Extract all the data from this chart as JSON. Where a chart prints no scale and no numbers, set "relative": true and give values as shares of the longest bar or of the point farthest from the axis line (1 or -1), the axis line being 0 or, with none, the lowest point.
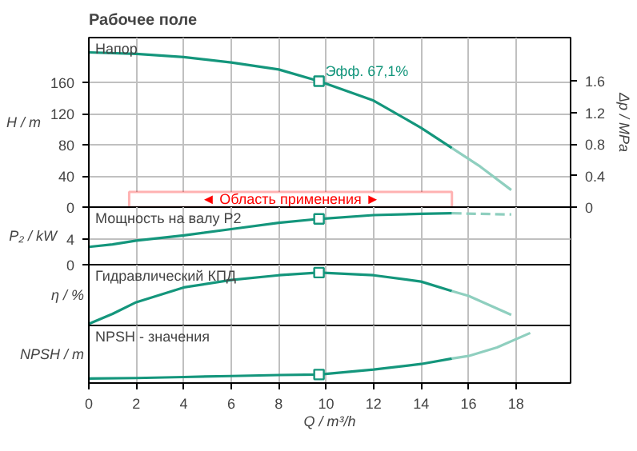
{
  "chart_data": [
    {
      "type": "line",
      "title": "Рабочее поле",
      "ylabel": "H / m",
      "y2label": "Δp / MPa",
      "xlim": [
        0,
        20.3
      ],
      "xticks": [
        0,
        2,
        4,
        6,
        8,
        10,
        12,
        14,
        16,
        18
      ],
      "ylim": [
        0,
        218
      ],
      "yticks": [
        0,
        40,
        80,
        120,
        160
      ],
      "y2lim": [
        0,
        2.15
      ],
      "y2ticks": [
        0,
        0.4,
        0.8,
        1.2,
        1.6
      ],
      "grid": true,
      "tick_labels": "y",
      "annotations": [
        "Напор",
        {
          "text": "Эфф. 67,1%",
          "x": 9.7,
          "y": 162
        }
      ],
      "bands": [
        {
          "axis": "x",
          "from": 1.7,
          "to": 15.3,
          "label": "◄ Область применения ►",
          "color": "#ff0000"
        }
      ],
      "series": [
        {
          "color": "#14967c",
          "x": [
            0,
            2,
            4,
            6,
            8,
            9.7,
            12,
            14,
            15.3
          ],
          "values": [
            199,
            197,
            193,
            186,
            177,
            162,
            137,
            102,
            76
          ]
        },
        {
          "color": "#8fcfbf",
          "x": [
            15.3,
            16.5,
            17.8
          ],
          "values": [
            76,
            52,
            22
          ]
        },
        {
          "type": "scatter",
          "marker": "square",
          "color": "#14967c",
          "x": [
            9.7
          ],
          "values": [
            162
          ]
        }
      ]
    },
    {
      "type": "line",
      "ylabel": "P₂ / kW",
      "xlim": [
        0,
        20.3
      ],
      "xticks": [
        0,
        2,
        4,
        6,
        8,
        10,
        12,
        14,
        16,
        18
      ],
      "ylim": [
        0,
        9.06
      ],
      "yticks": [
        0,
        4
      ],
      "grid": true,
      "tick_labels": "y",
      "annotations": [
        "Мощность на валу P2"
      ],
      "series": [
        {
          "color": "#14967c",
          "x": [
            0,
            1,
            2,
            4,
            6,
            8,
            9.7,
            12,
            14,
            15.3
          ],
          "values": [
            2.8,
            3.2,
            3.8,
            4.6,
            5.6,
            6.6,
            7.2,
            7.8,
            8.0,
            8.1
          ]
        },
        {
          "color": "#8fcfbf",
          "line_style": "dashed",
          "x": [
            15.3,
            16.5,
            17.8
          ],
          "values": [
            8.1,
            8.0,
            7.9
          ]
        },
        {
          "type": "scatter",
          "marker": "square",
          "color": "#14967c",
          "x": [
            9.7
          ],
          "values": [
            7.2
          ]
        }
      ]
    },
    {
      "type": "line",
      "relative": true,
      "ylabel": "η / %",
      "xlim": [
        0,
        20.3
      ],
      "xticks": [
        0,
        2,
        4,
        6,
        8,
        10,
        12,
        14,
        16,
        18
      ],
      "grid": "x",
      "tick_labels": false,
      "annotations": [
        "Гидравлический КПД"
      ],
      "series": [
        {
          "color": "#14967c",
          "x": [
            0,
            1,
            2,
            4,
            6,
            8,
            9.7,
            12,
            14,
            15.3
          ],
          "values": [
            0.03,
            0.22,
            0.44,
            0.72,
            0.86,
            0.95,
            1,
            0.95,
            0.83,
            0.65
          ]
        },
        {
          "color": "#8fcfbf",
          "x": [
            15.3,
            16,
            17.8
          ],
          "values": [
            0.65,
            0.56,
            0.2
          ]
        },
        {
          "type": "scatter",
          "marker": "square",
          "color": "#14967c",
          "x": [
            9.7
          ],
          "values": [
            1
          ]
        }
      ]
    },
    {
      "type": "line",
      "relative": true,
      "ylabel": "NPSH / m",
      "xlabel": "Q / m³/h",
      "xlim": [
        0,
        20.3
      ],
      "xticks": [
        0,
        2,
        4,
        6,
        8,
        10,
        12,
        14,
        16,
        18
      ],
      "grid": "x",
      "tick_labels": "x",
      "annotations": [
        "NPSH - значения"
      ],
      "series": [
        {
          "color": "#14967c",
          "x": [
            0,
            2,
            4,
            6,
            8,
            9.7,
            12,
            14,
            15.3
          ],
          "values": [
            0.09,
            0.1,
            0.12,
            0.14,
            0.16,
            0.17,
            0.27,
            0.38,
            0.49
          ]
        },
        {
          "color": "#8fcfbf",
          "x": [
            15.3,
            16,
            17.2,
            18.6
          ],
          "values": [
            0.49,
            0.54,
            0.71,
            1
          ]
        },
        {
          "type": "scatter",
          "marker": "square",
          "color": "#14967c",
          "x": [
            9.7
          ],
          "values": [
            0.17
          ]
        }
      ]
    }
  ]
}
